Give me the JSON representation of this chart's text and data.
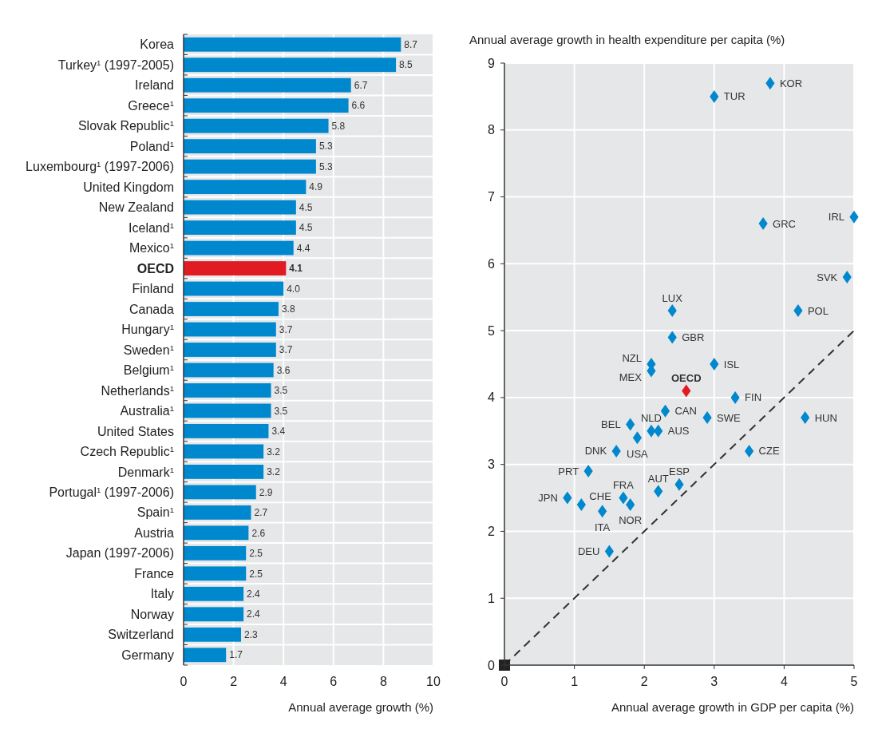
{
  "chart_data": [
    {
      "type": "bar",
      "orientation": "horizontal",
      "xlabel": "Annual average growth (%)",
      "xlim": [
        0,
        10
      ],
      "xticks": [
        0,
        2,
        4,
        6,
        8,
        10
      ],
      "grid": "x",
      "value_labels": [
        "8.7",
        "8.5",
        "6.7",
        "6.6",
        "5.8",
        "5.3",
        "5.3",
        "4.9",
        "4.5",
        "4.5",
        "4.4",
        "4.1",
        "4.0",
        "3.8",
        "3.7",
        "3.7",
        "3.6",
        "3.5",
        "3.5",
        "3.4",
        "3.2",
        "3.2",
        "2.9",
        "2.7",
        "2.6",
        "2.5",
        "2.5",
        "2.4",
        "2.4",
        "2.3",
        "1.7"
      ],
      "categories": [
        "Korea",
        "Turkey$^{1}$ (1997-2005)",
        "Ireland",
        "Greece$^{1}$",
        "Slovak Republic$^{1}$",
        "Poland$^{1}$",
        "Luxembourg$^{1}$ (1997-2006)",
        "United Kingdom",
        "New Zealand",
        "Iceland$^{1}$",
        "Mexico$^{1}$",
        "OECD",
        "Finland",
        "Canada",
        "Hungary$^{1}$",
        "Sweden$^{1}$",
        "Belgium$^{1}$",
        "Netherlands$^{1}$",
        "Australia$^{1}$",
        "United States",
        "Czech Republic$^{1}$",
        "Denmark$^{1}$",
        "Portugal$^{1}$ (1997-2006)",
        "Spain$^{1}$",
        "Austria",
        "Japan (1997-2006)",
        "France",
        "Italy",
        "Norway",
        "Switzerland",
        "Germany"
      ],
      "values": [
        8.7,
        8.5,
        6.7,
        6.6,
        5.8,
        5.3,
        5.3,
        4.9,
        4.5,
        4.5,
        4.4,
        4.1,
        4.0,
        3.8,
        3.7,
        3.7,
        3.6,
        3.5,
        3.5,
        3.4,
        3.2,
        3.2,
        2.9,
        2.7,
        2.6,
        2.5,
        2.5,
        2.4,
        2.4,
        2.3,
        1.7
      ],
      "colors": [
        "#0088cf",
        "#0088cf",
        "#0088cf",
        "#0088cf",
        "#0088cf",
        "#0088cf",
        "#0088cf",
        "#0088cf",
        "#0088cf",
        "#0088cf",
        "#0088cf",
        "#e01b22",
        "#0088cf",
        "#0088cf",
        "#0088cf",
        "#0088cf",
        "#0088cf",
        "#0088cf",
        "#0088cf",
        "#0088cf",
        "#0088cf",
        "#0088cf",
        "#0088cf",
        "#0088cf",
        "#0088cf",
        "#0088cf",
        "#0088cf",
        "#0088cf",
        "#0088cf",
        "#0088cf",
        "#0088cf"
      ]
    },
    {
      "type": "scatter",
      "xlabel": "Annual average growth in GDP per capita (%)",
      "ylabel": "Annual average growth in health expenditure per capita (%)",
      "xlim": [
        0,
        5
      ],
      "ylim": [
        0,
        9
      ],
      "xticks": [
        0,
        1,
        2,
        3,
        4,
        5
      ],
      "yticks": [
        0,
        1,
        2,
        3,
        4,
        5,
        6,
        7,
        8,
        9
      ],
      "grid": true,
      "series": [
        {
          "type": "scatter",
          "marker": "diamond",
          "x": [
            3.8,
            3.0,
            3.7,
            5.0,
            4.9,
            4.2,
            2.4,
            2.4,
            2.1,
            2.1,
            3.0,
            2.6,
            3.3,
            2.3,
            4.3,
            2.9,
            1.8,
            2.1,
            2.2,
            1.9,
            1.6,
            3.5,
            1.2,
            2.5,
            2.2,
            0.9,
            1.1,
            1.7,
            1.8,
            1.4,
            1.5
          ],
          "values": [
            8.7,
            8.5,
            6.6,
            6.7,
            5.8,
            5.3,
            5.3,
            4.9,
            4.5,
            4.4,
            4.5,
            4.1,
            4.0,
            3.8,
            3.7,
            3.7,
            3.6,
            3.5,
            3.5,
            3.4,
            3.2,
            3.2,
            2.9,
            2.7,
            2.6,
            2.5,
            2.4,
            2.5,
            2.4,
            2.3,
            1.7
          ],
          "colors": [
            "#0088cf",
            "#0088cf",
            "#0088cf",
            "#0088cf",
            "#0088cf",
            "#0088cf",
            "#0088cf",
            "#0088cf",
            "#0088cf",
            "#0088cf",
            "#0088cf",
            "#e01b22",
            "#0088cf",
            "#0088cf",
            "#0088cf",
            "#0088cf",
            "#0088cf",
            "#0088cf",
            "#0088cf",
            "#0088cf",
            "#0088cf",
            "#0088cf",
            "#0088cf",
            "#0088cf",
            "#0088cf",
            "#0088cf",
            "#0088cf",
            "#0088cf",
            "#0088cf",
            "#0088cf",
            "#0088cf"
          ]
        },
        {
          "type": "line",
          "x": [
            0,
            5
          ],
          "values": [
            0,
            5
          ],
          "color": "#333333",
          "line_style": "dashed"
        }
      ],
      "annotations": [
        {
          "text": "KOR",
          "x": 3.8,
          "y": 8.7
        },
        {
          "text": "TUR",
          "x": 3.0,
          "y": 8.5
        },
        {
          "text": "GRC",
          "x": 3.7,
          "y": 6.6
        },
        {
          "text": "IRL",
          "x": 5.0,
          "y": 6.7
        },
        {
          "text": "SVK",
          "x": 4.9,
          "y": 5.8
        },
        {
          "text": "POL",
          "x": 4.2,
          "y": 5.3
        },
        {
          "text": "LUX",
          "x": 2.4,
          "y": 5.3
        },
        {
          "text": "GBR",
          "x": 2.4,
          "y": 4.9
        },
        {
          "text": "NZL",
          "x": 2.1,
          "y": 4.5
        },
        {
          "text": "MEX",
          "x": 2.1,
          "y": 4.4
        },
        {
          "text": "ISL",
          "x": 3.0,
          "y": 4.5
        },
        {
          "text": "OECD",
          "x": 2.6,
          "y": 4.1
        },
        {
          "text": "FIN",
          "x": 3.3,
          "y": 4.0
        },
        {
          "text": "CAN",
          "x": 2.3,
          "y": 3.8
        },
        {
          "text": "HUN",
          "x": 4.3,
          "y": 3.7
        },
        {
          "text": "SWE",
          "x": 2.9,
          "y": 3.7
        },
        {
          "text": "BEL",
          "x": 1.8,
          "y": 3.6
        },
        {
          "text": "NLD",
          "x": 2.1,
          "y": 3.5
        },
        {
          "text": "AUS",
          "x": 2.2,
          "y": 3.5
        },
        {
          "text": "USA",
          "x": 1.9,
          "y": 3.4
        },
        {
          "text": "DNK",
          "x": 1.6,
          "y": 3.2
        },
        {
          "text": "CZE",
          "x": 3.5,
          "y": 3.2
        },
        {
          "text": "PRT",
          "x": 1.2,
          "y": 2.9
        },
        {
          "text": "ESP",
          "x": 2.5,
          "y": 2.7
        },
        {
          "text": "AUT",
          "x": 2.2,
          "y": 2.6
        },
        {
          "text": "JPN",
          "x": 0.9,
          "y": 2.5
        },
        {
          "text": "CHE",
          "x": 1.1,
          "y": 2.4
        },
        {
          "text": "FRA",
          "x": 1.7,
          "y": 2.5
        },
        {
          "text": "NOR",
          "x": 1.8,
          "y": 2.4
        },
        {
          "text": "ITA",
          "x": 1.4,
          "y": 2.3
        },
        {
          "text": "DEU",
          "x": 1.5,
          "y": 1.7
        }
      ]
    }
  ]
}
